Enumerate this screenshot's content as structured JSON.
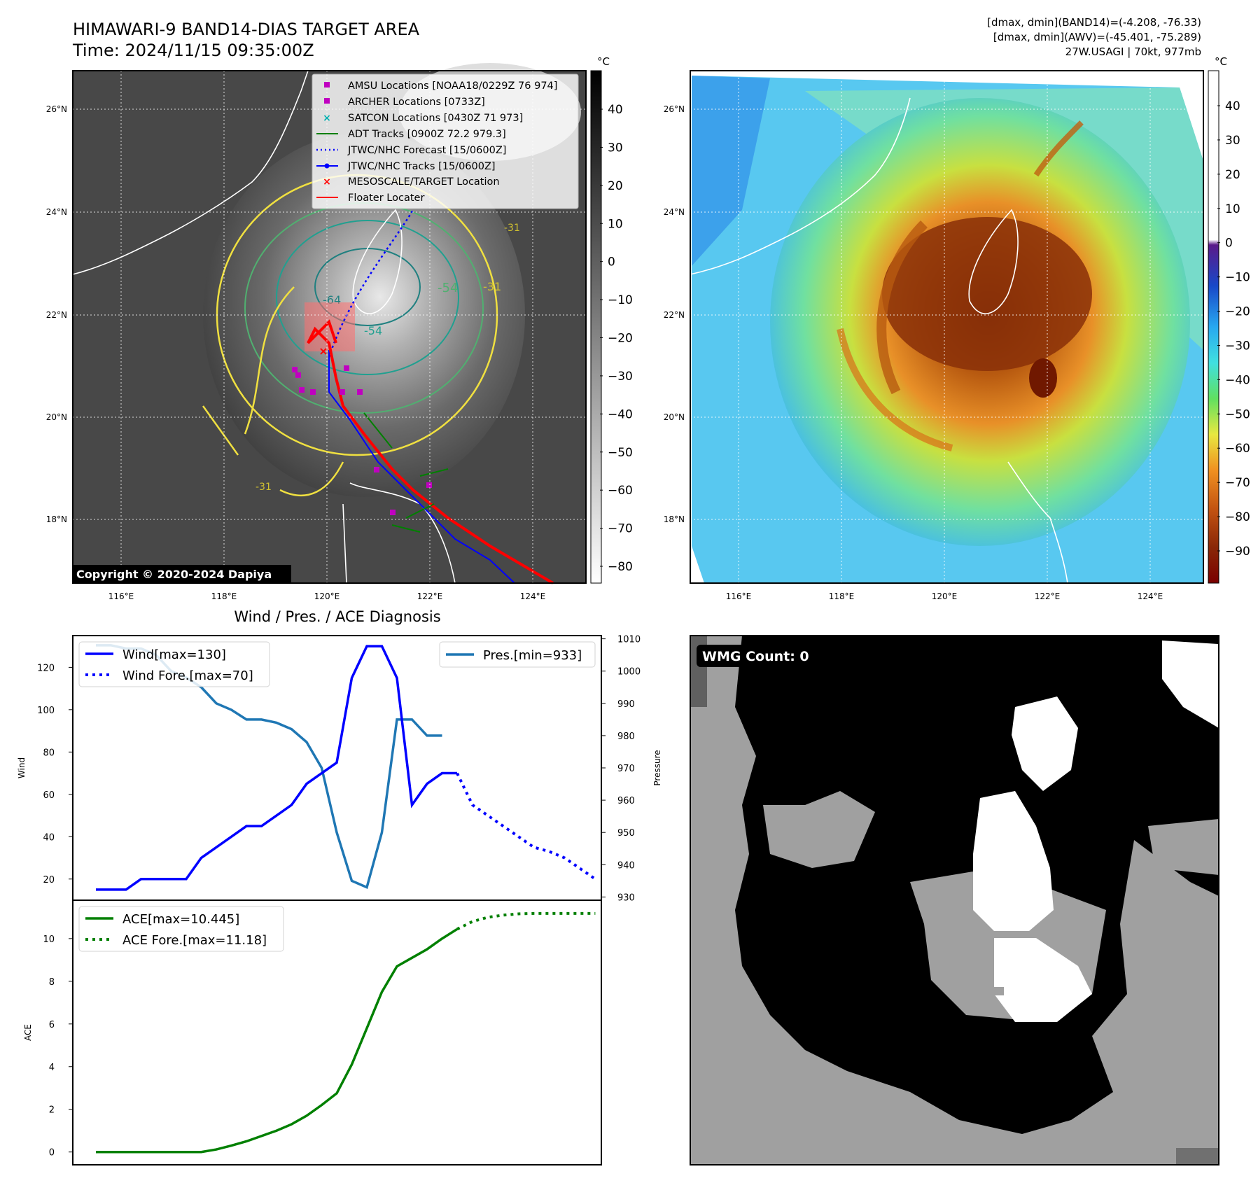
{
  "header": {
    "title_line1": "HIMAWARI-9 BAND14-DIAS TARGET AREA",
    "title_line2": "Time: 2024/11/15 09:35:00Z",
    "info_line1": "[dmax, dmin](BAND14)=(-4.208, -76.33)",
    "info_line2": "[dmax, dmin](AWV)=(-45.401, -75.289)",
    "info_line3": "27W.USAGI | 70kt, 977mb"
  },
  "map_left": {
    "copyright": "Copyright © 2020-2024 Dapiya",
    "unit": "°C",
    "colorbar_ticks": [
      "40",
      "30",
      "20",
      "10",
      "0",
      "−10",
      "−20",
      "−30",
      "−40",
      "−50",
      "−60",
      "−70",
      "−80"
    ],
    "lat_labels": [
      "26°N",
      "24°N",
      "22°N",
      "20°N",
      "18°N"
    ],
    "lon_labels": [
      "116°E",
      "118°E",
      "120°E",
      "122°E",
      "124°E"
    ],
    "contour_labels": [
      "-31",
      "-54",
      "-64",
      "-54",
      "-31",
      "-31"
    ],
    "legend": [
      {
        "label": "AMSU Locations [NOAA18/0229Z 76 974]",
        "color": "#c000c0",
        "marker": "square"
      },
      {
        "label": "ARCHER Locations [0733Z]",
        "color": "#c000c0",
        "marker": "square"
      },
      {
        "label": "SATCON Locations [0430Z 71 973]",
        "color": "#00b0b0",
        "marker": "x"
      },
      {
        "label": "ADT Tracks [0900Z 72.2 979.3]",
        "color": "#008000",
        "marker": "line"
      },
      {
        "label": "JTWC/NHC Forecast [15/0600Z]",
        "color": "#0000ff",
        "marker": "dotted"
      },
      {
        "label": "JTWC/NHC Tracks [15/0600Z]",
        "color": "#0000ff",
        "marker": "line-dot"
      },
      {
        "label": "MESOSCALE/TARGET Location",
        "color": "#ff0000",
        "marker": "x"
      },
      {
        "label": "Floater Locater",
        "color": "#ff0000",
        "marker": "line"
      }
    ]
  },
  "map_right": {
    "unit": "°C",
    "colorbar_ticks": [
      "40",
      "30",
      "20",
      "10",
      "0",
      "−10",
      "−20",
      "−30",
      "−40",
      "−50",
      "−60",
      "−70",
      "−80",
      "−90"
    ],
    "lat_labels": [
      "26°N",
      "24°N",
      "22°N",
      "20°N",
      "18°N"
    ],
    "lon_labels": [
      "116°E",
      "118°E",
      "120°E",
      "122°E",
      "124°E"
    ]
  },
  "wmg_panel": {
    "label": "WMG Count: 0"
  },
  "chart_data": [
    {
      "type": "line",
      "title": "Wind / Pres. / ACE Diagnosis",
      "ylabel": "Wind",
      "y2label": "Pressure",
      "ylim": [
        10,
        135
      ],
      "y2lim": [
        929,
        1011
      ],
      "yticks": [
        20,
        40,
        60,
        80,
        100,
        120
      ],
      "y2ticks": [
        930,
        940,
        950,
        960,
        970,
        980,
        990,
        1000,
        1010
      ],
      "series": [
        {
          "name": "Wind[max=130]",
          "color": "#0000ff",
          "style": "solid",
          "axis": "left",
          "values": [
            15,
            15,
            15,
            20,
            20,
            20,
            20,
            30,
            35,
            40,
            45,
            45,
            50,
            55,
            65,
            70,
            75,
            115,
            130,
            130,
            115,
            55,
            65,
            70,
            70
          ]
        },
        {
          "name": "Wind Fore.[max=70]",
          "color": "#0000ff",
          "style": "dotted",
          "axis": "left",
          "values": [
            70,
            55,
            50,
            45,
            40,
            35,
            33,
            30,
            25,
            20
          ]
        },
        {
          "name": "Pres.[min=933]",
          "color": "#1f77b4",
          "style": "solid",
          "axis": "right",
          "values": [
            1008,
            1008,
            1007,
            1007,
            1005,
            1000,
            998,
            995,
            990,
            988,
            985,
            985,
            984,
            982,
            978,
            970,
            950,
            935,
            933,
            950,
            985,
            985,
            980,
            980
          ]
        }
      ],
      "legend_left": [
        "Wind[max=130]",
        "Wind Fore.[max=70]"
      ],
      "legend_right": [
        "Pres.[min=933]"
      ]
    },
    {
      "type": "line",
      "ylabel": "ACE",
      "ylim": [
        -0.6,
        11.8
      ],
      "yticks": [
        0,
        2,
        4,
        6,
        8,
        10
      ],
      "series": [
        {
          "name": "ACE[max=10.445]",
          "color": "#008000",
          "style": "solid",
          "values": [
            0,
            0,
            0,
            0,
            0,
            0,
            0,
            0,
            0.12,
            0.3,
            0.5,
            0.75,
            1.0,
            1.3,
            1.7,
            2.2,
            2.75,
            4.1,
            5.8,
            7.5,
            8.7,
            9.1,
            9.5,
            10.0,
            10.445
          ]
        },
        {
          "name": "ACE Fore.[max=11.18]",
          "color": "#008000",
          "style": "dotted",
          "values": [
            10.445,
            10.8,
            11.0,
            11.1,
            11.16,
            11.18,
            11.18,
            11.18,
            11.18,
            11.18
          ]
        }
      ],
      "legend": [
        "ACE[max=10.445]",
        "ACE Fore.[max=11.18]"
      ]
    }
  ]
}
